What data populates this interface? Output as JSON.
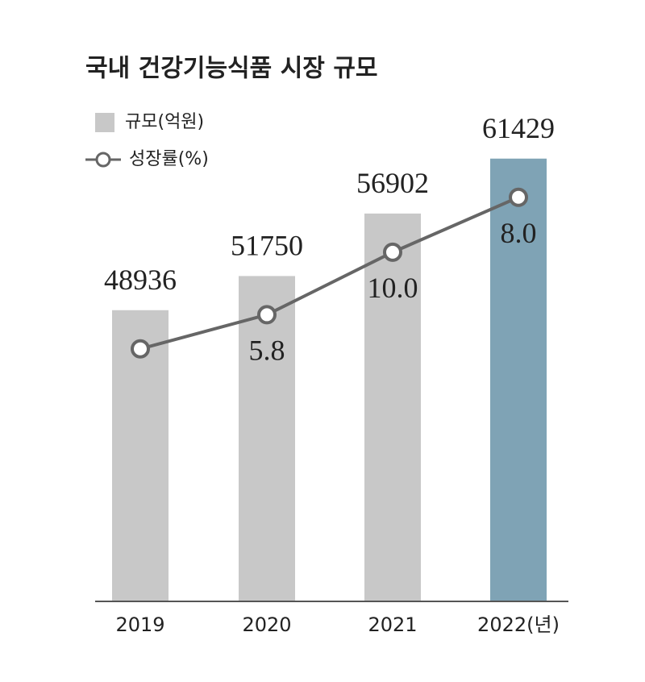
{
  "chart_data": {
    "type": "bar-line",
    "title": "국내 건강기능식품 시장 규모",
    "categories": [
      "2019",
      "2020",
      "2021",
      "2022(년)"
    ],
    "series": [
      {
        "name": "규모(억원)",
        "type": "bar",
        "values": [
          48936,
          51750,
          56902,
          61429
        ],
        "colors": [
          "#c8c8c8",
          "#c8c8c8",
          "#c8c8c8",
          "#7fa3b5"
        ]
      },
      {
        "name": "성장률(%)",
        "type": "line",
        "color": "#666666",
        "values": [
          null,
          5.8,
          10.0,
          8.0
        ],
        "value_labels": [
          null,
          "5.8",
          "10.0",
          "8.0"
        ]
      }
    ],
    "ylim": [
      25000,
      65000
    ]
  }
}
